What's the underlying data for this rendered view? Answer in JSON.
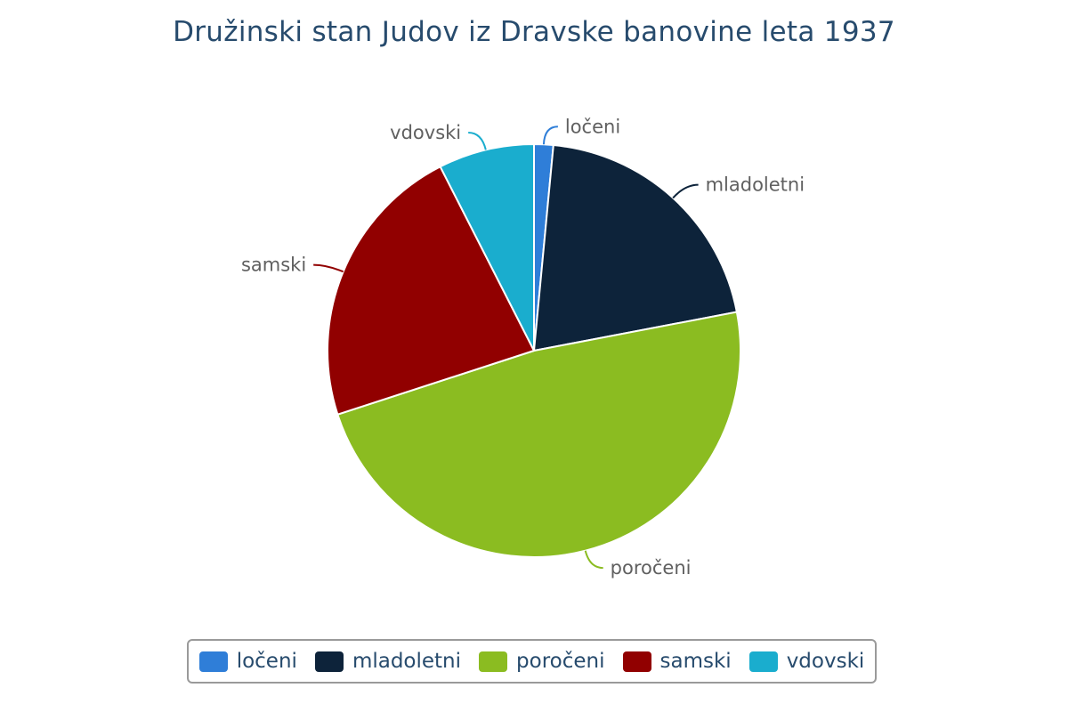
{
  "chart_data": {
    "type": "pie",
    "title": "Družinski stan Judov iz Dravske banovine leta 1937",
    "categories": [
      "ločeni",
      "mladoletni",
      "poročeni",
      "samski",
      "vdovski"
    ],
    "values": [
      1.5,
      20.5,
      48.0,
      22.5,
      7.5
    ],
    "unit": "%",
    "colors": [
      "#2f7ed8",
      "#0d233a",
      "#8bbc21",
      "#910000",
      "#1aadce"
    ],
    "legend_position": "bottom",
    "data_labels": true
  }
}
